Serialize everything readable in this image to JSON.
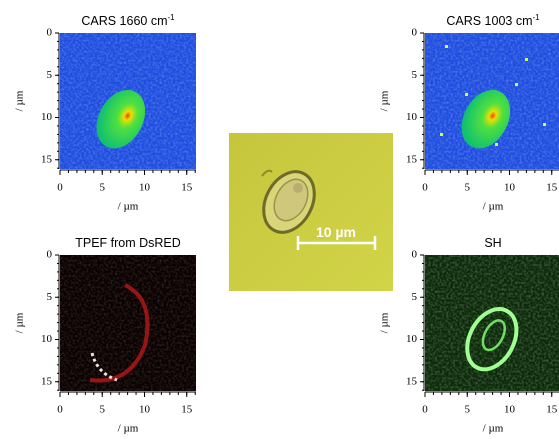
{
  "panels": [
    {
      "title": {
        "text": "CARS 1660 cm",
        "superscript": "-1"
      },
      "yticks": [
        0,
        5,
        10,
        15
      ],
      "xticks": [
        0,
        5,
        10,
        15
      ],
      "xlabel": "/ µm",
      "ylabel": "/ µm"
    },
    {
      "title": {
        "text": "CARS 1003 cm",
        "superscript": "-1"
      },
      "yticks": [
        0,
        5,
        10,
        15
      ],
      "xticks": [
        0,
        5,
        10,
        15
      ],
      "xlabel": "/ µm",
      "ylabel": "/ µm"
    },
    {
      "title": {
        "text": "TPEF from DsRED"
      },
      "yticks": [
        0,
        5,
        10,
        15
      ],
      "xticks": [
        0,
        5,
        10,
        15
      ],
      "xlabel": "/ µm",
      "ylabel": "/ µm"
    },
    {
      "title": {
        "text": "SH"
      },
      "yticks": [
        0,
        5,
        10,
        15
      ],
      "xticks": [
        0,
        5,
        10,
        15
      ],
      "xlabel": "/ µm",
      "ylabel": "/ µm"
    }
  ],
  "center_image": {
    "scale_bar_label": "10 µm"
  }
}
